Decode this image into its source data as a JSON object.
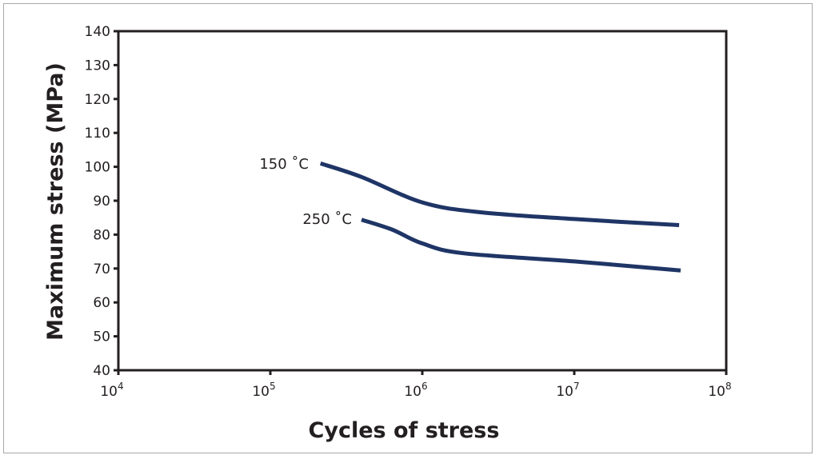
{
  "chart_data": {
    "type": "line",
    "title": "",
    "xlabel": "Cycles of stress",
    "ylabel": "Maximum stress (MPa)",
    "xscale": "log",
    "xlim_log10": [
      4,
      8
    ],
    "ylim": [
      40,
      140
    ],
    "x_ticks": [
      {
        "base": "10",
        "exp": "4",
        "log10": 4
      },
      {
        "base": "10",
        "exp": "5",
        "log10": 5
      },
      {
        "base": "10",
        "exp": "6",
        "log10": 6
      },
      {
        "base": "10",
        "exp": "7",
        "log10": 7
      },
      {
        "base": "10",
        "exp": "8",
        "log10": 8
      }
    ],
    "y_ticks": [
      40,
      50,
      60,
      70,
      80,
      90,
      100,
      110,
      120,
      130,
      140
    ],
    "y_tick_labels": [
      "40",
      "50",
      "60",
      "70",
      "80",
      "90",
      "100",
      "110",
      "120",
      "130",
      "140"
    ],
    "grid": false,
    "series_color": "#1f3566",
    "series": [
      {
        "name": "150 ˚C",
        "log10_x": [
          5.33,
          5.6,
          6.0,
          6.38,
          7.0,
          7.69
        ],
        "values": [
          101,
          97,
          89.5,
          86.6,
          84.6,
          82.8
        ]
      },
      {
        "name": "250 ˚C",
        "log10_x": [
          5.6,
          5.8,
          6.0,
          6.27,
          7.0,
          7.7
        ],
        "values": [
          84.4,
          81.5,
          77.4,
          74.5,
          72.1,
          69.4
        ]
      }
    ]
  }
}
